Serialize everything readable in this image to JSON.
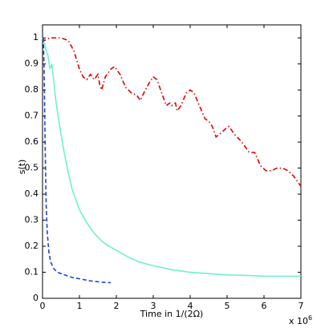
{
  "chart_data": {
    "type": "line",
    "ylabel": "s(t)",
    "xlabel": "Time in 1/(2Ω)",
    "x_multiplier": {
      "base": "x 10",
      "power": "6"
    },
    "xlim": [
      0,
      7
    ],
    "ylim": [
      0,
      1.05
    ],
    "xticks": [
      0,
      1,
      2,
      3,
      4,
      5,
      6,
      7
    ],
    "yticks": [
      0,
      0.1,
      0.2,
      0.3,
      0.4,
      0.5,
      0.6,
      0.7,
      0.8,
      0.9,
      1
    ],
    "grid": false,
    "series": [
      {
        "color": "#e00000",
        "dash": "dashdot",
        "x": [
          0,
          0.05,
          0.2,
          0.5,
          0.7,
          0.85,
          1.0,
          1.1,
          1.2,
          1.3,
          1.4,
          1.5,
          1.55,
          1.6,
          1.7,
          1.85,
          1.95,
          2.1,
          2.25,
          2.4,
          2.55,
          2.65,
          2.75,
          2.9,
          3.0,
          3.1,
          3.25,
          3.35,
          3.45,
          3.5,
          3.6,
          3.65,
          3.75,
          3.9,
          4.0,
          4.1,
          4.25,
          4.4,
          4.5,
          4.6,
          4.7,
          4.8,
          4.95,
          5.05,
          5.2,
          5.4,
          5.6,
          5.75,
          5.9,
          6.05,
          6.2,
          6.35,
          6.5,
          6.65,
          6.8,
          7.0
        ],
        "values": [
          1,
          0.99,
          1.0,
          1.0,
          0.99,
          0.95,
          0.88,
          0.85,
          0.84,
          0.86,
          0.84,
          0.86,
          0.82,
          0.8,
          0.85,
          0.88,
          0.89,
          0.86,
          0.81,
          0.79,
          0.78,
          0.76,
          0.79,
          0.83,
          0.85,
          0.84,
          0.78,
          0.74,
          0.75,
          0.74,
          0.75,
          0.72,
          0.74,
          0.79,
          0.8,
          0.79,
          0.74,
          0.69,
          0.68,
          0.66,
          0.62,
          0.63,
          0.65,
          0.66,
          0.63,
          0.6,
          0.56,
          0.56,
          0.51,
          0.49,
          0.49,
          0.5,
          0.5,
          0.49,
          0.47,
          0.43
        ]
      },
      {
        "color": "#70f0d0",
        "dash": "solid",
        "x": [
          0,
          0.05,
          0.1,
          0.15,
          0.2,
          0.25,
          0.3,
          0.35,
          0.4,
          0.5,
          0.6,
          0.7,
          0.8,
          0.9,
          1.0,
          1.2,
          1.4,
          1.6,
          1.8,
          2.0,
          2.3,
          2.6,
          3.0,
          3.5,
          4.0,
          4.5,
          5.0,
          5.5,
          6.0,
          6.5,
          7.0
        ],
        "values": [
          1,
          0.98,
          0.95,
          0.93,
          0.88,
          0.9,
          0.84,
          0.77,
          0.72,
          0.63,
          0.55,
          0.48,
          0.42,
          0.38,
          0.34,
          0.29,
          0.25,
          0.22,
          0.2,
          0.185,
          0.16,
          0.14,
          0.125,
          0.11,
          0.1,
          0.095,
          0.09,
          0.088,
          0.085,
          0.085,
          0.085
        ]
      },
      {
        "color": "#2040e0",
        "dash": "dashed",
        "x": [
          0.02,
          0.04,
          0.06,
          0.08,
          0.1,
          0.13,
          0.17,
          0.22,
          0.3,
          0.4,
          0.6,
          0.8,
          1.0,
          1.3,
          1.6,
          1.85
        ],
        "values": [
          1.0,
          0.9,
          0.7,
          0.5,
          0.35,
          0.25,
          0.18,
          0.14,
          0.115,
          0.1,
          0.09,
          0.08,
          0.075,
          0.067,
          0.062,
          0.06
        ]
      }
    ]
  }
}
